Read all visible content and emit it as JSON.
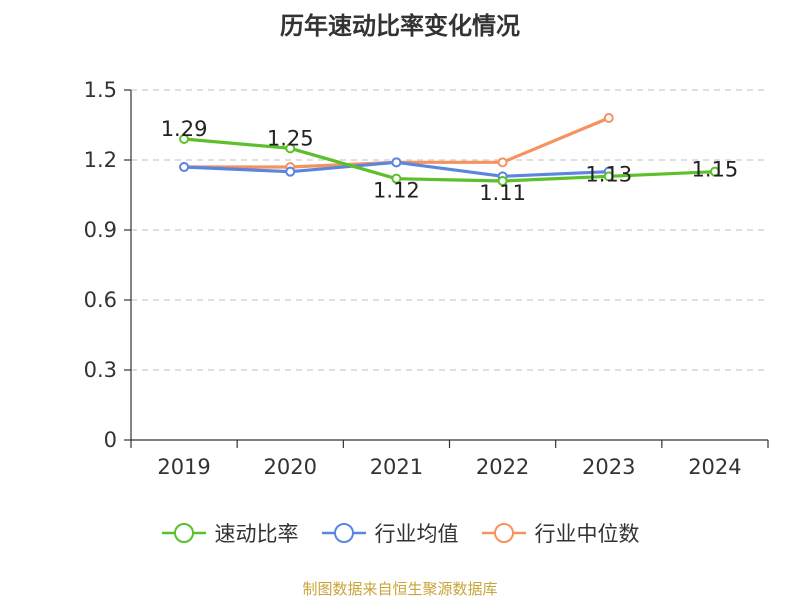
{
  "chart_data": {
    "type": "line",
    "title": "历年速动比率变化情况",
    "categories": [
      "2019",
      "2020",
      "2021",
      "2022",
      "2023",
      "2024"
    ],
    "ylim": [
      0,
      1.5
    ],
    "yticks": [
      "0",
      "0.3",
      "0.6",
      "0.9",
      "1.2",
      "1.5"
    ],
    "grid": true,
    "legend_position": "bottom",
    "series": [
      {
        "name": "速动比率",
        "color": "#5cc02b",
        "values": [
          1.29,
          1.25,
          1.12,
          1.11,
          1.13,
          1.15
        ],
        "labels": [
          "1.29",
          "1.25",
          "1.12",
          "1.11",
          "1.13",
          "1.15"
        ]
      },
      {
        "name": "行业均值",
        "color": "#5b86e0",
        "values": [
          1.17,
          1.15,
          1.19,
          1.13,
          1.15,
          null
        ]
      },
      {
        "name": "行业中位数",
        "color": "#f5925d",
        "values": [
          1.17,
          1.17,
          1.19,
          1.19,
          1.38,
          null
        ]
      }
    ]
  },
  "source": "制图数据来自恒生聚源数据库"
}
